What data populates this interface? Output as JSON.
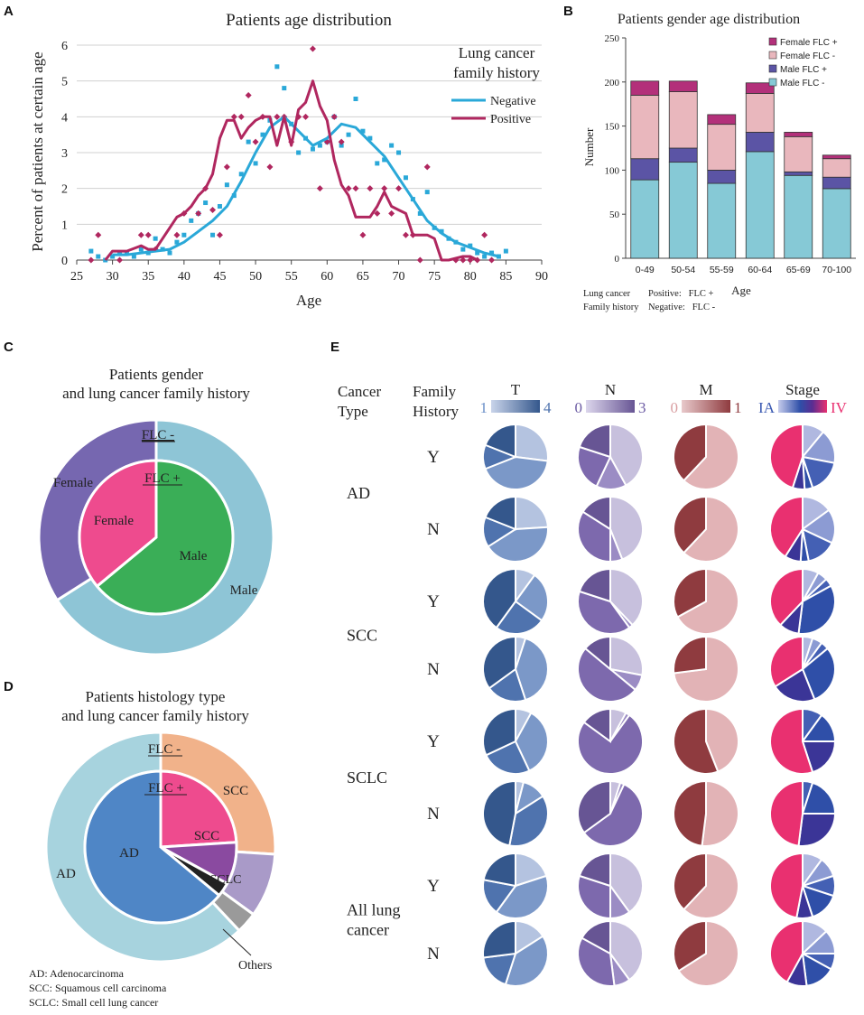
{
  "colors": {
    "negative_line": "#2aa8d8",
    "positive_line": "#b0275f",
    "female_flc_pos": "#b3307a",
    "female_flc_neg": "#e9b7bd",
    "male_flc_pos": "#5b54a5",
    "male_flc_neg": "#86c9d6",
    "pie_female_outer": "#7667b0",
    "pie_male_outer": "#8ec5d6",
    "pie_female_inner": "#ee4b8e",
    "pie_male_inner": "#3aae57",
    "hist_ad_outer": "#a7d3de",
    "hist_scc_outer": "#f1b28a",
    "hist_sclc_outer": "#a99ac8",
    "hist_other_outer": "#9a9a9a",
    "hist_ad_inner": "#4f86c6",
    "hist_scc_inner": "#ee4b8e",
    "hist_sclc_inner": "#8a4aa0",
    "hist_other_inner": "#222222",
    "T_ramp": [
      "#b4c3e0",
      "#7b98c8",
      "#4f73ae",
      "#34578c"
    ],
    "N_ramp": [
      "#c7c0dd",
      "#9b8cc4",
      "#7d69ad",
      "#675594"
    ],
    "M_ramp": [
      "#e2b3b6",
      "#8f3b3f"
    ],
    "Stage_ramp": [
      "#b0b8e0",
      "#8c9bd3",
      "#4460b4",
      "#2f4fa8",
      "#3b3597",
      "#e93070"
    ]
  },
  "chart_data": [
    {
      "panel": "A",
      "type": "line",
      "title": "Patients age distribution",
      "xlabel": "Age",
      "ylabel": "Percent of patients at certain age",
      "xlim": [
        25,
        90
      ],
      "ylim": [
        0,
        6
      ],
      "xticks": [
        "25",
        "30",
        "35",
        "40",
        "45",
        "50",
        "55",
        "60",
        "65",
        "70",
        "75",
        "80",
        "85",
        "90"
      ],
      "yticks": [
        "0",
        "1",
        "2",
        "3",
        "4",
        "5",
        "6"
      ],
      "legend_title": "Lung cancer family history",
      "series": [
        {
          "name": "Negative",
          "points_x": [
            27,
            28,
            29,
            30,
            31,
            32,
            33,
            34,
            35,
            36,
            37,
            38,
            39,
            40,
            41,
            42,
            43,
            44,
            45,
            46,
            47,
            48,
            49,
            50,
            51,
            52,
            53,
            54,
            55,
            56,
            57,
            58,
            59,
            60,
            61,
            62,
            63,
            64,
            65,
            66,
            67,
            68,
            69,
            70,
            71,
            72,
            73,
            74,
            75,
            76,
            77,
            78,
            79,
            80,
            81,
            82,
            83,
            84,
            85
          ],
          "points_y": [
            0.25,
            0.1,
            0,
            0.1,
            0.2,
            0.2,
            0.1,
            0.3,
            0.2,
            0.6,
            0.3,
            0.2,
            0.5,
            0.7,
            1.1,
            1.3,
            1.6,
            0.7,
            1.5,
            2.1,
            1.8,
            2.4,
            3.3,
            2.7,
            3.5,
            3.9,
            5.4,
            4.8,
            3.8,
            3.0,
            3.4,
            3.1,
            3.2,
            3.3,
            4.0,
            3.2,
            3.5,
            4.5,
            3.6,
            3.4,
            2.7,
            2.8,
            3.2,
            3.0,
            2.3,
            1.7,
            1.3,
            1.9,
            0.9,
            0.8,
            0.6,
            0.5,
            0.3,
            0.4,
            0.2,
            0.1,
            0.2,
            0.1,
            0.25
          ],
          "trend_x": [
            30,
            32,
            34,
            36,
            38,
            40,
            42,
            44,
            46,
            48,
            50,
            52,
            54,
            56,
            58,
            60,
            62,
            64,
            66,
            68,
            70,
            72,
            74,
            76,
            78,
            80,
            82,
            84
          ],
          "trend_y": [
            0.15,
            0.15,
            0.2,
            0.25,
            0.3,
            0.5,
            0.8,
            1.1,
            1.5,
            2.2,
            3.0,
            3.7,
            4.0,
            3.6,
            3.2,
            3.4,
            3.8,
            3.7,
            3.3,
            2.9,
            2.3,
            1.7,
            1.1,
            0.75,
            0.5,
            0.35,
            0.2,
            0.1
          ]
        },
        {
          "name": "Positive",
          "points_x": [
            27,
            28,
            31,
            34,
            35,
            36,
            39,
            40,
            42,
            43,
            44,
            45,
            46,
            47,
            48,
            49,
            50,
            51,
            52,
            53,
            54,
            55,
            56,
            57,
            58,
            59,
            60,
            61,
            62,
            63,
            64,
            65,
            66,
            67,
            68,
            69,
            70,
            71,
            72,
            73,
            74,
            78,
            79,
            80,
            81,
            82,
            83
          ],
          "points_y": [
            0,
            0.7,
            0,
            0.7,
            0.7,
            0.3,
            0.7,
            1.3,
            1.3,
            2.0,
            1.4,
            0.7,
            2.6,
            4.0,
            4.0,
            4.6,
            3.3,
            4.0,
            2.6,
            4.0,
            4.0,
            3.3,
            4.0,
            4.0,
            5.9,
            2.0,
            3.3,
            4.0,
            3.3,
            2.0,
            2.0,
            0.7,
            2.0,
            1.3,
            2.0,
            1.3,
            2.0,
            0.7,
            0.7,
            0,
            2.6,
            0,
            0,
            0,
            0,
            0.7,
            0
          ],
          "trend_x": [
            29,
            30,
            32,
            34,
            35,
            36,
            37,
            38,
            39,
            40,
            41,
            42,
            43,
            44,
            45,
            46,
            47,
            48,
            49,
            50,
            51,
            52,
            53,
            54,
            55,
            56,
            57,
            58,
            59,
            60,
            61,
            62,
            63,
            64,
            65,
            66,
            67,
            68,
            69,
            70,
            71,
            72,
            73,
            74,
            75,
            76,
            77,
            78,
            79,
            80,
            81
          ],
          "trend_y": [
            0,
            0.25,
            0.25,
            0.4,
            0.3,
            0.3,
            0.6,
            0.9,
            1.2,
            1.3,
            1.5,
            1.8,
            2.0,
            2.4,
            3.4,
            3.9,
            3.9,
            3.4,
            3.7,
            3.9,
            4.0,
            4.0,
            3.2,
            4.0,
            3.2,
            4.2,
            4.4,
            5.0,
            4.3,
            3.9,
            2.8,
            2.1,
            1.8,
            1.2,
            1.2,
            1.2,
            1.5,
            1.9,
            1.5,
            1.4,
            1.3,
            0.7,
            0.7,
            0.7,
            0.6,
            0,
            0,
            0.05,
            0.1,
            0.1,
            0
          ]
        }
      ]
    },
    {
      "panel": "B",
      "type": "bar",
      "stacked": true,
      "title": "Patients gender age distribution",
      "xlabel": "Age",
      "ylabel": "Number",
      "ylim": [
        0,
        250
      ],
      "yticks": [
        "0",
        "50",
        "100",
        "150",
        "200",
        "250"
      ],
      "categories": [
        "0-49",
        "50-54",
        "55-59",
        "60-64",
        "65-69",
        "70-100"
      ],
      "series": [
        {
          "name": "Male FLC -",
          "values": [
            89,
            109,
            85,
            121,
            94,
            79
          ]
        },
        {
          "name": "Male FLC +",
          "values": [
            24,
            16,
            15,
            22,
            4,
            13
          ]
        },
        {
          "name": "Female FLC -",
          "values": [
            72,
            64,
            52,
            44,
            40,
            21
          ]
        },
        {
          "name": "Female FLC +",
          "values": [
            16,
            12,
            11,
            12,
            5,
            4
          ]
        }
      ],
      "legend": [
        "Female FLC +",
        "Female FLC -",
        "Male FLC +",
        "Male FLC -"
      ],
      "footnote": {
        "left_line1": "Lung cancer",
        "left_line2": "Family history",
        "right_line1": "Positive:   FLC +",
        "right_line2": "Negative:   FLC -"
      }
    },
    {
      "panel": "C",
      "type": "pie",
      "title_line1": "Patients gender",
      "title_line2": "and lung cancer family history",
      "outer_label": "FLC -",
      "inner_label": "FLC +",
      "outer": [
        {
          "name": "Female",
          "value": 34
        },
        {
          "name": "Male",
          "value": 66
        }
      ],
      "inner": [
        {
          "name": "Female",
          "value": 36
        },
        {
          "name": "Male",
          "value": 64
        }
      ]
    },
    {
      "panel": "D",
      "type": "pie",
      "title_line1": "Patients histology type",
      "title_line2": "and lung cancer family history",
      "outer_label": "FLC -",
      "inner_label": "FLC +",
      "outer": [
        {
          "name": "SCC",
          "value": 26
        },
        {
          "name": "SCLC",
          "value": 9
        },
        {
          "name": "Others",
          "value": 3
        },
        {
          "name": "AD",
          "value": 62
        }
      ],
      "inner": [
        {
          "name": "SCC",
          "value": 24
        },
        {
          "name": "SCLC",
          "value": 9
        },
        {
          "name": "Others",
          "value": 3
        },
        {
          "name": "AD",
          "value": 64
        }
      ],
      "others_label": "Others",
      "notes": [
        "AD: Adenocarcinoma",
        "SCC: Squamous cell carcinoma",
        "SCLC: Small cell lung cancer"
      ]
    },
    {
      "panel": "E",
      "type": "pie",
      "header_cancer": [
        "Cancer",
        "Type"
      ],
      "header_family": [
        "Family",
        "History"
      ],
      "columns": [
        {
          "key": "T",
          "label": "T",
          "range_low": "1",
          "range_high": "4"
        },
        {
          "key": "N",
          "label": "N",
          "range_low": "0",
          "range_high": "3"
        },
        {
          "key": "M",
          "label": "M",
          "range_low": "0",
          "range_high": "1"
        },
        {
          "key": "Stage",
          "label": "Stage",
          "range_low": "IA",
          "range_high": "IV"
        }
      ],
      "groups": [
        {
          "cancer": [
            "AD"
          ],
          "rows": [
            {
              "history": "Y",
              "T": [
                27,
                42,
                12,
                19
              ],
              "N": [
                42,
                15,
                23,
                20
              ],
              "M": [
                62,
                38
              ],
              "Stage": [
                11,
                17,
                17,
                4,
                6,
                45
              ]
            },
            {
              "history": "N",
              "T": [
                24,
                42,
                15,
                19
              ],
              "N": [
                44,
                6,
                34,
                16
              ],
              "M": [
                62,
                38
              ],
              "Stage": [
                15,
                17,
                15,
                4,
                8,
                41
              ]
            }
          ]
        },
        {
          "cancer": [
            "SCC"
          ],
          "rows": [
            {
              "history": "Y",
              "T": [
                10,
                25,
                25,
                40
              ],
              "N": [
                38,
                2,
                40,
                20
              ],
              "M": [
                67,
                33
              ],
              "Stage": [
                8,
                5,
                4,
                35,
                10,
                38
              ]
            },
            {
              "history": "N",
              "T": [
                5,
                40,
                20,
                35
              ],
              "N": [
                28,
                8,
                50,
                14
              ],
              "M": [
                73,
                27
              ],
              "Stage": [
                5,
                5,
                4,
                30,
                22,
                34
              ]
            }
          ]
        },
        {
          "cancer": [
            "SCLC"
          ],
          "rows": [
            {
              "history": "Y",
              "T": [
                8,
                35,
                25,
                32
              ],
              "N": [
                8,
                2,
                75,
                15
              ],
              "M": [
                44,
                56
              ],
              "Stage": [
                0,
                0,
                10,
                15,
                20,
                55
              ]
            },
            {
              "history": "N",
              "T": [
                4,
                12,
                37,
                47
              ],
              "N": [
                5,
                2,
                58,
                35
              ],
              "M": [
                52,
                48
              ],
              "Stage": [
                0,
                0,
                5,
                20,
                27,
                48
              ]
            }
          ]
        },
        {
          "cancer": [
            "All lung",
            "cancer"
          ],
          "rows": [
            {
              "history": "Y",
              "T": [
                20,
                40,
                18,
                22
              ],
              "N": [
                40,
                10,
                30,
                20
              ],
              "M": [
                62,
                38
              ],
              "Stage": [
                10,
                10,
                10,
                15,
                8,
                47
              ]
            },
            {
              "history": "N",
              "T": [
                16,
                39,
                18,
                27
              ],
              "N": [
                40,
                8,
                35,
                17
              ],
              "M": [
                66,
                34
              ],
              "Stage": [
                13,
                12,
                8,
                15,
                10,
                42
              ]
            }
          ]
        }
      ]
    }
  ]
}
